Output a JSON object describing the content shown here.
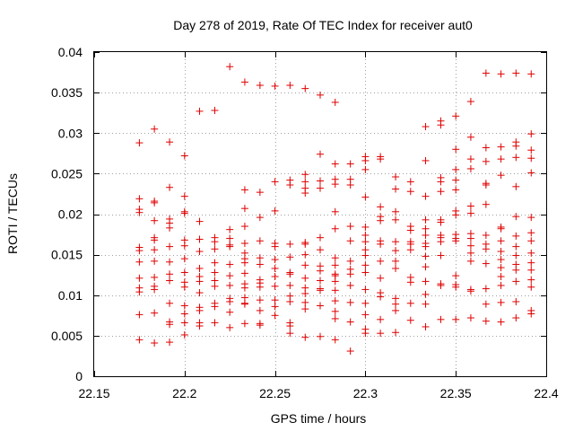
{
  "chart_data": {
    "type": "scatter",
    "title": "Day 278 of 2019, Rate Of TEC Index for receiver aut0",
    "xlabel": "GPS time / hours",
    "ylabel": "ROTI / TECUs",
    "xlim": [
      22.15,
      22.4
    ],
    "ylim": [
      0,
      0.04
    ],
    "xticks": [
      "22.15",
      "22.2",
      "22.25",
      "22.3",
      "22.35",
      "22.4"
    ],
    "yticks": [
      "0",
      "0.005",
      "0.01",
      "0.015",
      "0.02",
      "0.025",
      "0.03",
      "0.035",
      "0.04"
    ],
    "grid": true,
    "marker": "plus",
    "color": "#e00000",
    "columns": [
      {
        "x": 22.175,
        "y": [
          0.0288,
          0.0219,
          0.0206,
          0.0202,
          0.0159,
          0.0155,
          0.0141,
          0.0121,
          0.0109,
          0.0104,
          0.0076,
          0.0045
        ]
      },
      {
        "x": 22.1833,
        "y": [
          0.0305,
          0.0216,
          0.0214,
          0.0192,
          0.0171,
          0.0168,
          0.0156,
          0.0142,
          0.0122,
          0.0111,
          0.0107,
          0.0078,
          0.0041
        ]
      },
      {
        "x": 22.1917,
        "y": [
          0.0289,
          0.0233,
          0.0194,
          0.0189,
          0.0183,
          0.016,
          0.0141,
          0.0126,
          0.0118,
          0.009,
          0.0067,
          0.0064,
          0.0042
        ]
      },
      {
        "x": 22.2,
        "y": [
          0.0272,
          0.0222,
          0.0203,
          0.0201,
          0.0168,
          0.0161,
          0.0145,
          0.0128,
          0.0116,
          0.011,
          0.0087,
          0.0077,
          0.0066,
          0.0051
        ]
      },
      {
        "x": 22.2083,
        "y": [
          0.0327,
          0.0191,
          0.0169,
          0.0154,
          0.0133,
          0.0123,
          0.0117,
          0.0103,
          0.0085,
          0.0081,
          0.0066,
          0.0062
        ]
      },
      {
        "x": 22.2167,
        "y": [
          0.0328,
          0.0171,
          0.0166,
          0.0157,
          0.014,
          0.0128,
          0.0118,
          0.0111,
          0.009,
          0.0086,
          0.0066
        ]
      },
      {
        "x": 22.225,
        "y": [
          0.0382,
          0.0181,
          0.017,
          0.0162,
          0.016,
          0.0138,
          0.0124,
          0.0112,
          0.0096,
          0.0092,
          0.0079,
          0.006
        ]
      },
      {
        "x": 22.2333,
        "y": [
          0.0363,
          0.023,
          0.0207,
          0.0185,
          0.0164,
          0.0152,
          0.0145,
          0.014,
          0.0127,
          0.0114,
          0.0109,
          0.0097,
          0.009,
          0.0089,
          0.0065
        ]
      },
      {
        "x": 22.2417,
        "y": [
          0.0359,
          0.0227,
          0.0196,
          0.0167,
          0.0146,
          0.0138,
          0.0119,
          0.0115,
          0.011,
          0.0094,
          0.0081,
          0.0065,
          0.0063
        ]
      },
      {
        "x": 22.25,
        "y": [
          0.0358,
          0.024,
          0.0204,
          0.0164,
          0.016,
          0.0144,
          0.0133,
          0.0123,
          0.0111,
          0.0094,
          0.0086,
          0.0075
        ]
      },
      {
        "x": 22.2583,
        "y": [
          0.0359,
          0.0242,
          0.0236,
          0.0163,
          0.0147,
          0.0128,
          0.0126,
          0.0112,
          0.0099,
          0.0092,
          0.0066,
          0.0062,
          0.0053
        ]
      },
      {
        "x": 22.2667,
        "y": [
          0.0355,
          0.0249,
          0.024,
          0.0232,
          0.0226,
          0.0165,
          0.0163,
          0.015,
          0.0137,
          0.0121,
          0.0109,
          0.0102,
          0.0091,
          0.0083,
          0.0048
        ]
      },
      {
        "x": 22.275,
        "y": [
          0.0347,
          0.0274,
          0.0241,
          0.0232,
          0.0171,
          0.0156,
          0.0136,
          0.013,
          0.0118,
          0.0108,
          0.0106,
          0.0087,
          0.0049
        ]
      },
      {
        "x": 22.2833,
        "y": [
          0.0338,
          0.0262,
          0.0243,
          0.0237,
          0.0203,
          0.0182,
          0.0146,
          0.0137,
          0.0126,
          0.0124,
          0.0117,
          0.0106,
          0.0093,
          0.008,
          0.0071,
          0.0045
        ]
      },
      {
        "x": 22.2917,
        "y": [
          0.0262,
          0.0243,
          0.0236,
          0.0185,
          0.0167,
          0.0142,
          0.0132,
          0.0126,
          0.0112,
          0.0091,
          0.0067,
          0.0031
        ]
      },
      {
        "x": 22.3,
        "y": [
          0.0271,
          0.0266,
          0.0255,
          0.0221,
          0.0184,
          0.0174,
          0.0166,
          0.0156,
          0.0149,
          0.0137,
          0.0128,
          0.0107,
          0.009,
          0.0076,
          0.0058,
          0.0053
        ]
      },
      {
        "x": 22.3083,
        "y": [
          0.0271,
          0.0268,
          0.0209,
          0.0197,
          0.0192,
          0.0167,
          0.0163,
          0.0142,
          0.0121,
          0.0103,
          0.0098,
          0.007,
          0.0053
        ]
      },
      {
        "x": 22.3167,
        "y": [
          0.0246,
          0.0231,
          0.0203,
          0.0193,
          0.0166,
          0.0155,
          0.0142,
          0.0133,
          0.0096,
          0.0089,
          0.0081,
          0.0054
        ]
      },
      {
        "x": 22.325,
        "y": [
          0.024,
          0.0228,
          0.0185,
          0.018,
          0.0166,
          0.0163,
          0.0156,
          0.0122,
          0.0116,
          0.009,
          0.0069
        ]
      },
      {
        "x": 22.3333,
        "y": [
          0.0308,
          0.0266,
          0.0222,
          0.0193,
          0.0182,
          0.0174,
          0.0164,
          0.016,
          0.0148,
          0.0135,
          0.0117,
          0.0101,
          0.0089,
          0.0061
        ]
      },
      {
        "x": 22.3417,
        "y": [
          0.0315,
          0.031,
          0.0245,
          0.024,
          0.0228,
          0.0193,
          0.019,
          0.0174,
          0.0171,
          0.0166,
          0.0149,
          0.0114,
          0.0112,
          0.007
        ]
      },
      {
        "x": 22.35,
        "y": [
          0.0321,
          0.028,
          0.0255,
          0.0242,
          0.023,
          0.0204,
          0.0199,
          0.0175,
          0.017,
          0.0167,
          0.0124,
          0.0113,
          0.011,
          0.007
        ]
      },
      {
        "x": 22.3583,
        "y": [
          0.0339,
          0.0295,
          0.0268,
          0.0256,
          0.021,
          0.0201,
          0.0176,
          0.017,
          0.0161,
          0.0152,
          0.0142,
          0.0107,
          0.0105,
          0.0072
        ]
      },
      {
        "x": 22.3667,
        "y": [
          0.0374,
          0.0282,
          0.0265,
          0.0238,
          0.0236,
          0.0212,
          0.0174,
          0.0163,
          0.0157,
          0.0139,
          0.0108,
          0.0089,
          0.0068
        ]
      },
      {
        "x": 22.375,
        "y": [
          0.0373,
          0.0283,
          0.0268,
          0.0248,
          0.0184,
          0.0182,
          0.0167,
          0.0154,
          0.0144,
          0.0134,
          0.0123,
          0.0112,
          0.0091,
          0.0067
        ]
      },
      {
        "x": 22.3833,
        "y": [
          0.0374,
          0.0289,
          0.0284,
          0.027,
          0.0234,
          0.0197,
          0.0173,
          0.016,
          0.0149,
          0.0138,
          0.0131,
          0.0117,
          0.0092,
          0.0072
        ]
      },
      {
        "x": 22.3917,
        "y": [
          0.0373,
          0.0299,
          0.0279,
          0.0269,
          0.0251,
          0.0196,
          0.0177,
          0.0167,
          0.0152,
          0.014,
          0.0131,
          0.0119,
          0.011,
          0.0081,
          0.0077
        ]
      }
    ]
  }
}
